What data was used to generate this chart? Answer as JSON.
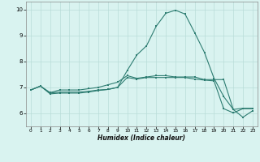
{
  "xlabel": "Humidex (Indice chaleur)",
  "x_values": [
    0,
    1,
    2,
    3,
    4,
    5,
    6,
    7,
    8,
    9,
    10,
    11,
    12,
    13,
    14,
    15,
    16,
    17,
    18,
    19,
    20,
    21,
    22,
    23
  ],
  "line1": [
    6.9,
    7.05,
    6.8,
    6.9,
    6.9,
    6.9,
    6.95,
    7.0,
    7.1,
    7.2,
    7.45,
    7.35,
    7.4,
    7.45,
    7.45,
    7.4,
    7.4,
    7.4,
    7.3,
    7.3,
    7.3,
    6.15,
    6.2,
    6.2
  ],
  "line2": [
    6.9,
    7.05,
    6.78,
    6.82,
    6.82,
    6.82,
    6.85,
    6.9,
    6.92,
    7.0,
    7.65,
    8.25,
    8.6,
    9.35,
    9.85,
    9.97,
    9.82,
    9.1,
    8.35,
    7.35,
    6.65,
    6.15,
    5.85,
    6.1
  ],
  "line3": [
    6.9,
    7.05,
    6.75,
    6.78,
    6.78,
    6.78,
    6.82,
    6.88,
    6.92,
    7.0,
    7.38,
    7.32,
    7.38,
    7.38,
    7.38,
    7.38,
    7.38,
    7.32,
    7.28,
    7.25,
    6.18,
    6.02,
    6.18,
    6.18
  ],
  "line_color": "#2e7d72",
  "bg_color": "#d9f3f0",
  "grid_color": "#b8ddd9",
  "ylim": [
    5.5,
    10.3
  ],
  "xlim": [
    -0.5,
    23.5
  ],
  "yticks": [
    6,
    7,
    8,
    9,
    10
  ],
  "xticks": [
    0,
    1,
    2,
    3,
    4,
    5,
    6,
    7,
    8,
    9,
    10,
    11,
    12,
    13,
    14,
    15,
    16,
    17,
    18,
    19,
    20,
    21,
    22,
    23
  ]
}
